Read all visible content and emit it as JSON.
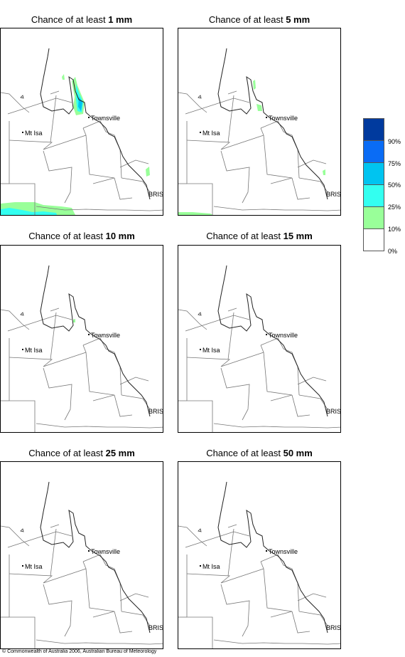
{
  "panels": [
    {
      "prefix": "Chance of at least ",
      "amount": "1 mm"
    },
    {
      "prefix": "Chance of at least ",
      "amount": "5 mm"
    },
    {
      "prefix": "Chance of at least ",
      "amount": "10 mm"
    },
    {
      "prefix": "Chance of at least ",
      "amount": "15 mm"
    },
    {
      "prefix": "Chance of at least ",
      "amount": "25 mm"
    },
    {
      "prefix": "Chance of at least ",
      "amount": "50 mm"
    }
  ],
  "places": {
    "townsville": "Townsville",
    "mt_isa": "Mt Isa",
    "bris": "BRIS"
  },
  "legend": {
    "labels": [
      "90%",
      "75%",
      "50%",
      "25%",
      "10%",
      "0%"
    ],
    "colors": [
      "#003a9e",
      "#0a6cf5",
      "#00c4f0",
      "#33fff0",
      "#99ff99",
      "#ffffff"
    ]
  },
  "footer": "© Commonwealth of Australia 2006, Australian Bureau of Meteorology"
}
